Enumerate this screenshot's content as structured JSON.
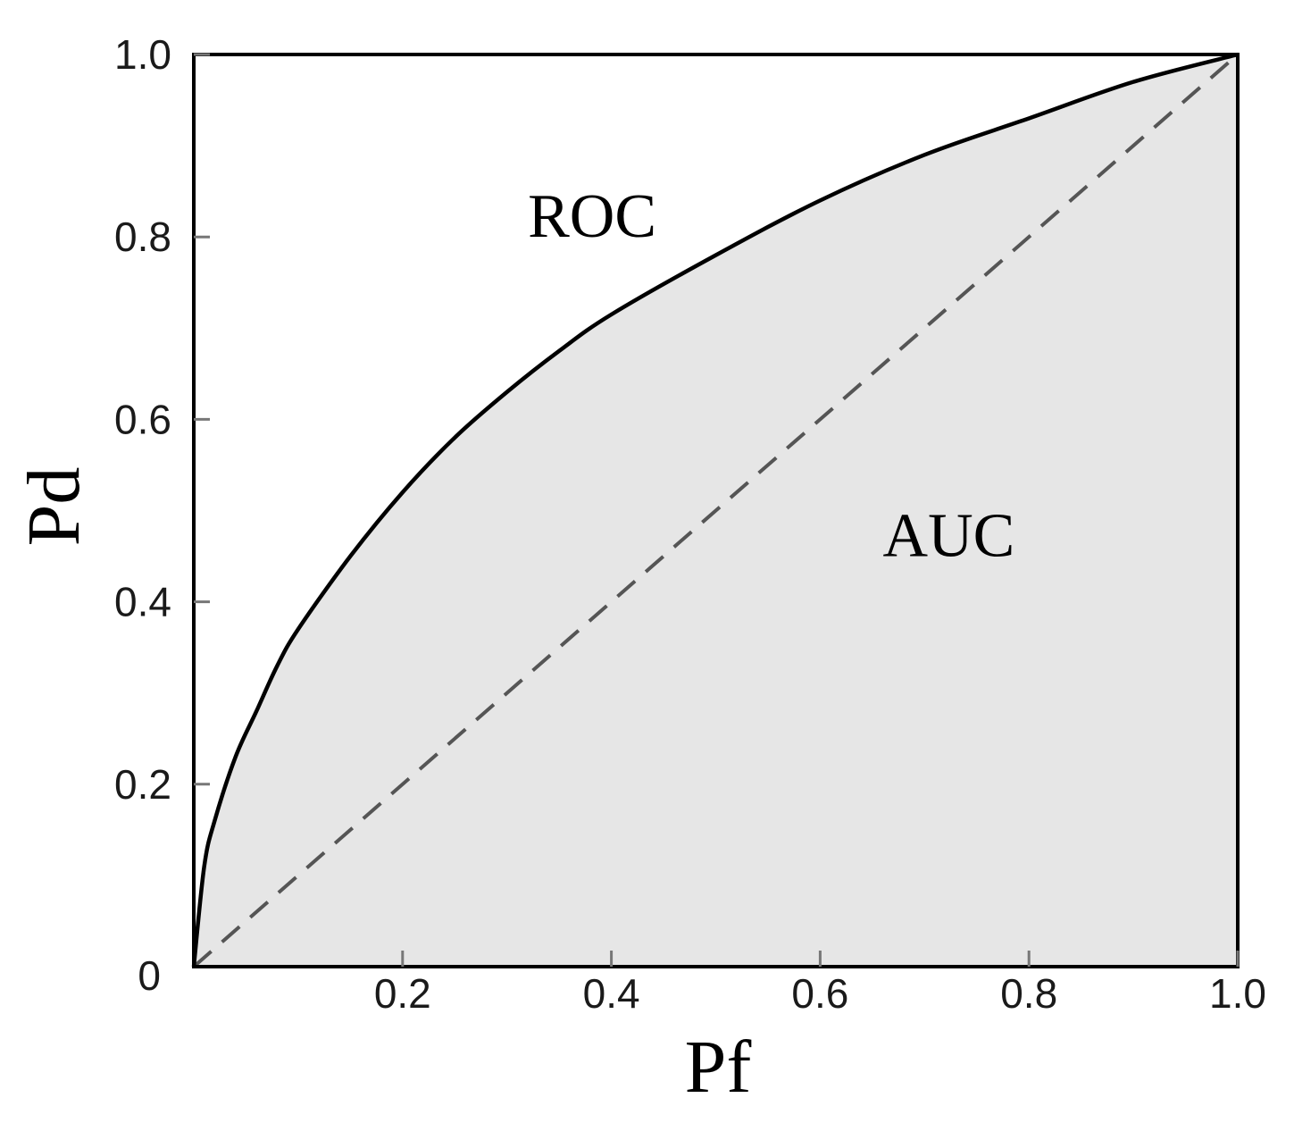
{
  "chart_data": {
    "type": "area",
    "title": "",
    "xlabel": "Pf",
    "ylabel": "Pd",
    "xlim": [
      0,
      1.0
    ],
    "ylim": [
      0,
      1.0
    ],
    "x_tick_labels": [
      "0.2",
      "0.4",
      "0.6",
      "0.8",
      "1.0"
    ],
    "x_ticks": [
      0.2,
      0.4,
      0.6,
      0.8,
      1.0
    ],
    "y_tick_labels": [
      "0",
      "0.2",
      "0.4",
      "0.6",
      "0.8",
      "1.0"
    ],
    "y_ticks": [
      0,
      0.2,
      0.4,
      0.6,
      0.8,
      1.0
    ],
    "grid": false,
    "annotations": [
      {
        "text": "ROC",
        "x": 0.32,
        "y": 0.8
      },
      {
        "text": "AUC",
        "x": 0.66,
        "y": 0.45
      }
    ],
    "series": [
      {
        "style": "solid",
        "filled": true,
        "x": [
          0,
          0.01,
          0.02,
          0.04,
          0.06,
          0.08,
          0.1,
          0.15,
          0.2,
          0.25,
          0.3,
          0.35,
          0.4,
          0.5,
          0.6,
          0.7,
          0.8,
          0.9,
          1.0
        ],
        "y": [
          0,
          0.11,
          0.16,
          0.23,
          0.28,
          0.33,
          0.37,
          0.45,
          0.52,
          0.58,
          0.63,
          0.675,
          0.715,
          0.78,
          0.84,
          0.89,
          0.93,
          0.97,
          1.0
        ]
      },
      {
        "style": "dashed",
        "filled": false,
        "x": [
          0,
          1.0
        ],
        "y": [
          0,
          1.0
        ]
      }
    ],
    "colors": {
      "fill": "#e6e6e6",
      "curve": "#000000",
      "diagonal": "#555555",
      "frame": "#000000"
    }
  }
}
